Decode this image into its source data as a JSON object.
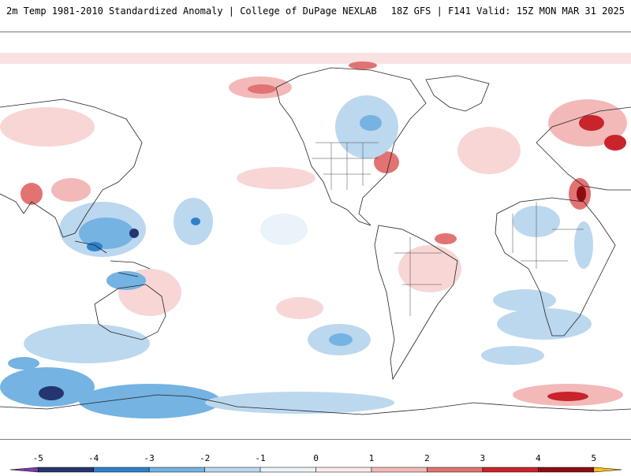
{
  "header": {
    "title_left": "2m Temp 1981-2010 Standardized Anomaly | College of DuPage NEXLAB",
    "title_right": "18Z GFS | F141 Valid: 15Z MON MAR 31 2025"
  },
  "colorbar": {
    "ticks": [
      {
        "label": "-5",
        "value": -5
      },
      {
        "label": "-4",
        "value": -4
      },
      {
        "label": "-3",
        "value": -3
      },
      {
        "label": "-2",
        "value": -2
      },
      {
        "label": "-1",
        "value": -1
      },
      {
        "label": "0",
        "value": 0
      },
      {
        "label": "1",
        "value": 1
      },
      {
        "label": "2",
        "value": 2
      },
      {
        "label": "3",
        "value": 3
      },
      {
        "label": "4",
        "value": 4
      },
      {
        "label": "5",
        "value": 5
      }
    ],
    "segments": [
      {
        "from": -5.5,
        "to": -5,
        "color": "#7b3fa6"
      },
      {
        "from": -5,
        "to": -4,
        "color": "#25356e"
      },
      {
        "from": -4,
        "to": -3,
        "color": "#2f82c8"
      },
      {
        "from": -3,
        "to": -2,
        "color": "#74b3e2"
      },
      {
        "from": -2,
        "to": -1,
        "color": "#bcd8ef"
      },
      {
        "from": -1,
        "to": 0,
        "color": "#eaf2fa"
      },
      {
        "from": 0,
        "to": 1,
        "color": "#fbeaea"
      },
      {
        "from": 1,
        "to": 2,
        "color": "#f3b9b9"
      },
      {
        "from": 2,
        "to": 3,
        "color": "#e27373"
      },
      {
        "from": 3,
        "to": 4,
        "color": "#c9242b"
      },
      {
        "from": 4,
        "to": 5,
        "color": "#8d0c12"
      },
      {
        "from": 5,
        "to": 5.5,
        "color": "#f3c21c"
      }
    ]
  },
  "colors": {
    "ocean": "#ffffff",
    "coastline": "#222222",
    "cold": "#bcd8ef",
    "cold_strong": "#74b3e2",
    "cold_extreme": "#25356e",
    "warm": "#f8d6d6",
    "warm_strong": "#e27373",
    "warm_extreme": "#c9242b"
  }
}
